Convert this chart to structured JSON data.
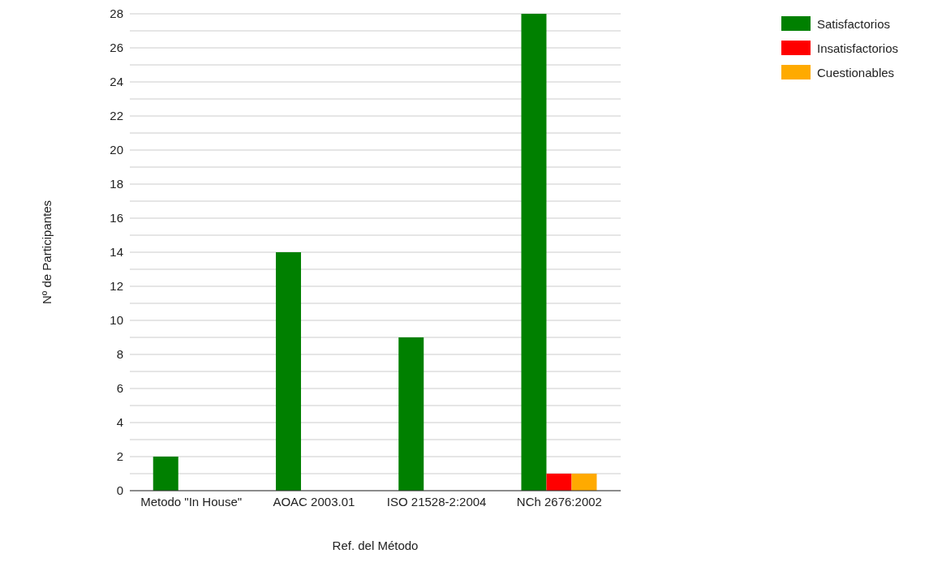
{
  "chart_data": {
    "type": "bar",
    "xlabel": "Ref. del Método",
    "ylabel": "Nº de Participantes",
    "categories": [
      "Metodo \"In House\"",
      "AOAC 2003.01",
      "ISO 21528-2:2004",
      "NCh 2676:2002"
    ],
    "series": [
      {
        "name": "Satisfactorios",
        "color": "#008000",
        "values": [
          2,
          14,
          9,
          28
        ]
      },
      {
        "name": "Insatisfactorios",
        "color": "#ff0000",
        "values": [
          0,
          0,
          0,
          1
        ]
      },
      {
        "name": "Cuestionables",
        "color": "#ffaa00",
        "values": [
          0,
          0,
          0,
          1
        ]
      }
    ],
    "ylim": [
      0,
      28
    ],
    "yticks": [
      0,
      {
        "value": 1,
        "label": null
      },
      2,
      {
        "value": 3,
        "label": null
      },
      4,
      {
        "value": 5,
        "label": null
      },
      6,
      {
        "value": 7,
        "label": null
      },
      8,
      {
        "value": 9,
        "label": null
      },
      10,
      {
        "value": 11,
        "label": null
      },
      12,
      {
        "value": 13,
        "label": null
      },
      14,
      {
        "value": 15,
        "label": null
      },
      16,
      {
        "value": 17,
        "label": null
      },
      18,
      {
        "value": 19,
        "label": null
      },
      20,
      {
        "value": 21,
        "label": null
      },
      22,
      {
        "value": 23,
        "label": null
      },
      24,
      {
        "value": 25,
        "label": null
      },
      26,
      {
        "value": 27,
        "label": null
      },
      28
    ],
    "grid": "y",
    "legend": "top right"
  }
}
